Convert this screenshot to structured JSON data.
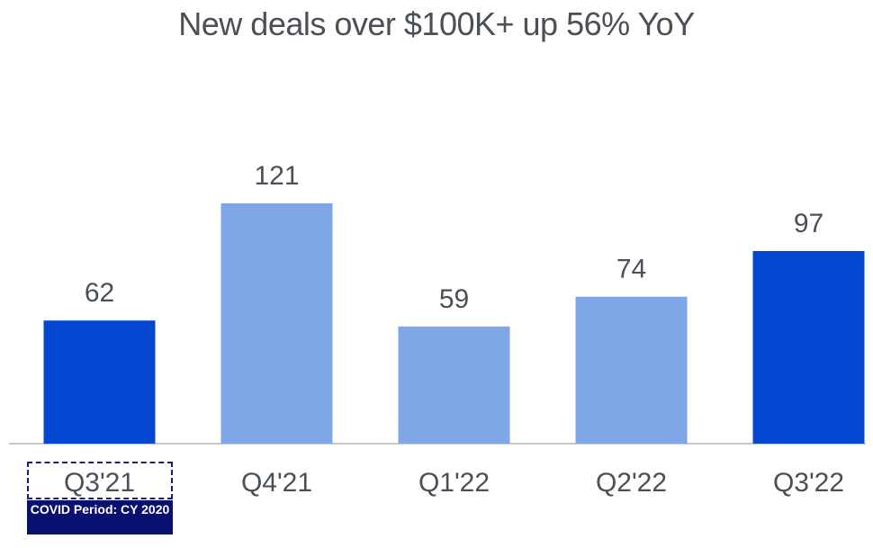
{
  "chart_data": {
    "type": "bar",
    "title": "New deals over $100K+ up 56% YoY",
    "categories": [
      "Q3'21",
      "Q4'21",
      "Q1'22",
      "Q2'22",
      "Q3'22"
    ],
    "values": [
      62,
      121,
      59,
      74,
      97
    ],
    "bar_colors": [
      "#0447D0",
      "#7FA6E6",
      "#7FA6E6",
      "#7FA6E6",
      "#0447D0"
    ],
    "ylim": [
      0,
      121
    ],
    "grid": false,
    "annotation": "COVID Period: CY 2020",
    "text_color": "#4a4f58",
    "axis_color": "#c8c8c8"
  }
}
